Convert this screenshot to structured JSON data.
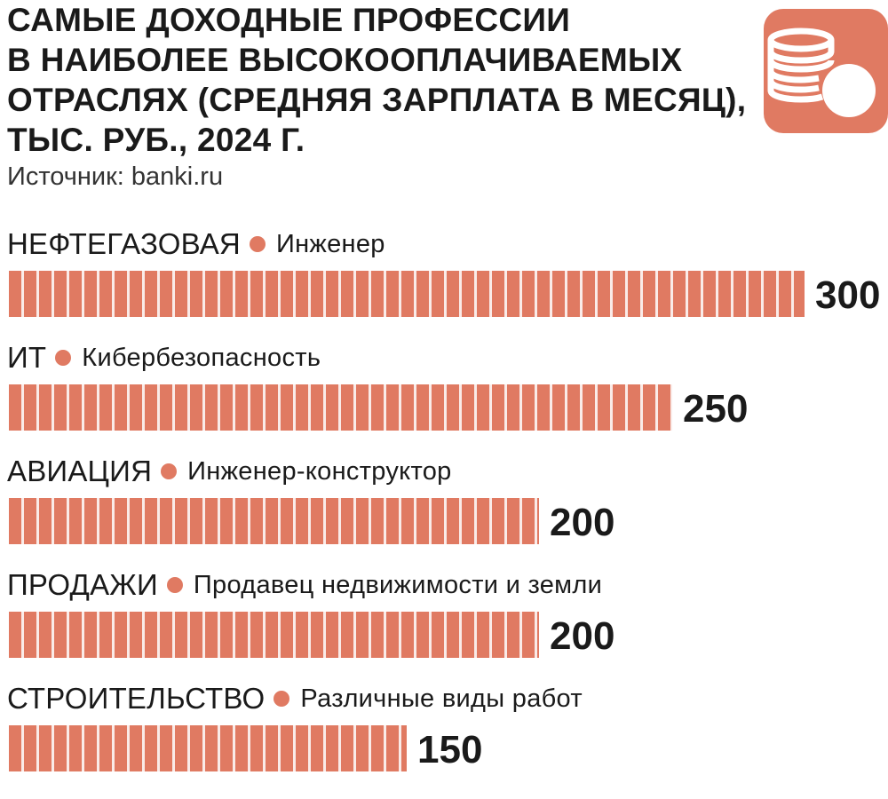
{
  "header": {
    "title_lines": [
      "САМЫЕ ДОХОДНЫЕ ПРОФЕССИИ",
      "В НАИБОЛЕЕ ВЫСОКООПЛАЧИВАЕМЫХ",
      "ОТРАСЛЯХ (СРЕДНЯЯ ЗАРПЛАТА В МЕСЯЦ),",
      "ТЫС. РУБ., 2024 Г."
    ],
    "source": "Источник: banki.ru",
    "logo_icon": "coins-icon"
  },
  "colors": {
    "accent": "#E07A62",
    "text": "#1A1A1A",
    "logo_symbol": "#FFFFFF"
  },
  "chart_data": {
    "type": "bar",
    "orientation": "horizontal",
    "title": "САМЫЕ ДОХОДНЫЕ ПРОФЕССИИ В НАИБОЛЕЕ ВЫСОКООПЛАЧИВАЕМЫХ ОТРАСЛЯХ (СРЕДНЯЯ ЗАРПЛАТА В МЕСЯЦ), ТЫС. РУБ., 2024 Г.",
    "categories": [
      "НЕФТЕГАЗОВАЯ",
      "ИТ",
      "АВИАЦИЯ",
      "ПРОДАЖИ",
      "СТРОИТЕЛЬСТВО"
    ],
    "professions": [
      "Инженер",
      "Кибербезопасность",
      "Инженер-конструктор",
      "Продавец недвижимости и земли",
      "Различные виды работ"
    ],
    "values": [
      300,
      250,
      200,
      200,
      150
    ],
    "value_labels": [
      "300",
      "250",
      "200",
      "200",
      "150"
    ],
    "xlim": [
      0,
      300
    ],
    "grid": false,
    "legend": "none"
  }
}
